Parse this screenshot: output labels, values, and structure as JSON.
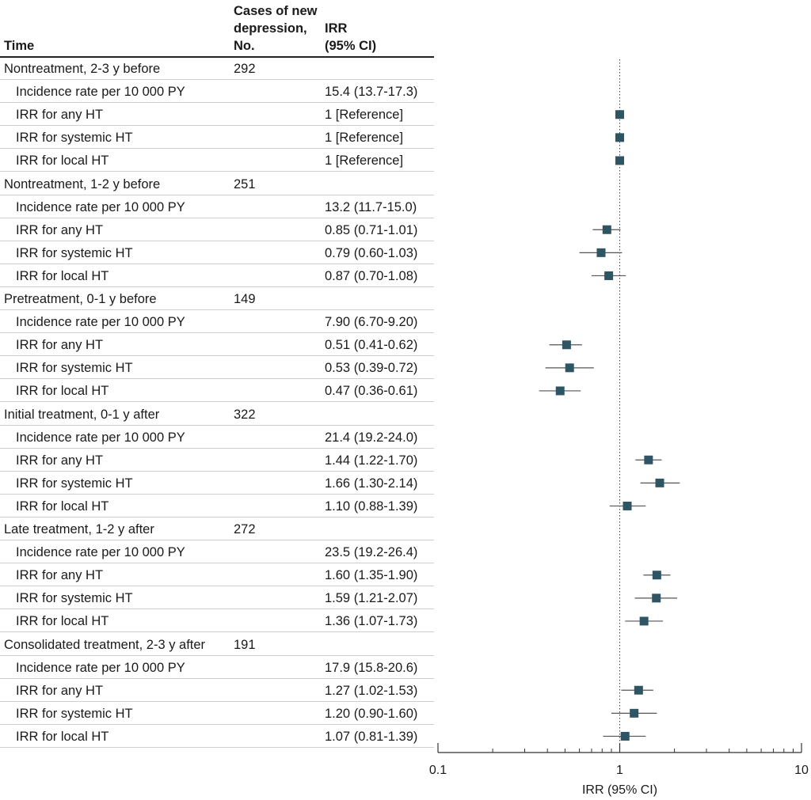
{
  "headers": {
    "time": "Time",
    "cases_line1": "Cases of new",
    "cases_line2": "depression,",
    "cases_line3": "No.",
    "irr_line1": "IRR",
    "irr_line2": "(95% CI)"
  },
  "colors": {
    "marker": "#2e5563",
    "ci_line": "#555555",
    "reference_line": "#444444",
    "separator": "#cfcfcf",
    "header_rule": "#222222"
  },
  "rows": [
    {
      "label": "Nontreatment, 2-3 y before",
      "cases": "292",
      "est": "",
      "group": true
    },
    {
      "label": "Incidence rate per 10 000 PY",
      "cases": "",
      "est": "15.4 (13.7-17.3)",
      "group": false
    },
    {
      "label": "IRR for any HT",
      "cases": "",
      "est": "1 [Reference]",
      "group": false
    },
    {
      "label": "IRR for systemic HT",
      "cases": "",
      "est": "1 [Reference]",
      "group": false
    },
    {
      "label": "IRR for local HT",
      "cases": "",
      "est": "1 [Reference]",
      "group": false
    },
    {
      "label": "Nontreatment, 1-2 y before",
      "cases": "251",
      "est": "",
      "group": true
    },
    {
      "label": "Incidence rate per 10 000 PY",
      "cases": "",
      "est": "13.2 (11.7-15.0)",
      "group": false
    },
    {
      "label": "IRR for any HT",
      "cases": "",
      "est": "0.85 (0.71-1.01)",
      "group": false
    },
    {
      "label": "IRR for systemic HT",
      "cases": "",
      "est": "0.79 (0.60-1.03)",
      "group": false
    },
    {
      "label": "IRR for local HT",
      "cases": "",
      "est": "0.87 (0.70-1.08)",
      "group": false
    },
    {
      "label": "Pretreatment, 0-1 y before",
      "cases": "149",
      "est": "",
      "group": true
    },
    {
      "label": "Incidence rate per 10 000 PY",
      "cases": "",
      "est": "7.90 (6.70-9.20)",
      "group": false
    },
    {
      "label": "IRR for any HT",
      "cases": "",
      "est": "0.51 (0.41-0.62)",
      "group": false
    },
    {
      "label": "IRR for systemic HT",
      "cases": "",
      "est": "0.53 (0.39-0.72)",
      "group": false
    },
    {
      "label": "IRR for local HT",
      "cases": "",
      "est": "0.47 (0.36-0.61)",
      "group": false
    },
    {
      "label": "Initial treatment, 0-1 y after",
      "cases": "322",
      "est": "",
      "group": true
    },
    {
      "label": "Incidence rate per 10 000 PY",
      "cases": "",
      "est": "21.4 (19.2-24.0)",
      "group": false
    },
    {
      "label": "IRR for any HT",
      "cases": "",
      "est": "1.44 (1.22-1.70)",
      "group": false
    },
    {
      "label": "IRR for systemic HT",
      "cases": "",
      "est": "1.66 (1.30-2.14)",
      "group": false
    },
    {
      "label": "IRR for local HT",
      "cases": "",
      "est": "1.10 (0.88-1.39)",
      "group": false
    },
    {
      "label": "Late treatment, 1-2 y after",
      "cases": "272",
      "est": "",
      "group": true
    },
    {
      "label": "Incidence rate per 10 000 PY",
      "cases": "",
      "est": "23.5 (19.2-26.4)",
      "group": false
    },
    {
      "label": "IRR for any HT",
      "cases": "",
      "est": "1.60 (1.35-1.90)",
      "group": false
    },
    {
      "label": "IRR for systemic HT",
      "cases": "",
      "est": "1.59 (1.21-2.07)",
      "group": false
    },
    {
      "label": "IRR for local HT",
      "cases": "",
      "est": "1.36 (1.07-1.73)",
      "group": false
    },
    {
      "label": "Consolidated treatment, 2-3 y after",
      "cases": "191",
      "est": "",
      "group": true
    },
    {
      "label": "Incidence rate per 10 000 PY",
      "cases": "",
      "est": "17.9 (15.8-20.6)",
      "group": false
    },
    {
      "label": "IRR for any HT",
      "cases": "",
      "est": "1.27 (1.02-1.53)",
      "group": false
    },
    {
      "label": "IRR for systemic HT",
      "cases": "",
      "est": "1.20 (0.90-1.60)",
      "group": false
    },
    {
      "label": "IRR for local HT",
      "cases": "",
      "est": "1.07 (0.81-1.39)",
      "group": false
    }
  ],
  "chart_data": {
    "type": "scatter",
    "subtype": "forest-plot",
    "xscale": "log",
    "xlim": [
      0.1,
      10
    ],
    "xticks": [
      0.1,
      1,
      10
    ],
    "xtick_labels": [
      "0.1",
      "1",
      "10"
    ],
    "xlabel": "IRR (95% CI)",
    "reference_line": 1,
    "grid": false,
    "points": [
      {
        "row": 2,
        "est": 1,
        "lo": null,
        "hi": null
      },
      {
        "row": 3,
        "est": 1,
        "lo": null,
        "hi": null
      },
      {
        "row": 4,
        "est": 1,
        "lo": null,
        "hi": null
      },
      {
        "row": 7,
        "est": 0.85,
        "lo": 0.71,
        "hi": 1.01
      },
      {
        "row": 8,
        "est": 0.79,
        "lo": 0.6,
        "hi": 1.03
      },
      {
        "row": 9,
        "est": 0.87,
        "lo": 0.7,
        "hi": 1.08
      },
      {
        "row": 12,
        "est": 0.51,
        "lo": 0.41,
        "hi": 0.62
      },
      {
        "row": 13,
        "est": 0.53,
        "lo": 0.39,
        "hi": 0.72
      },
      {
        "row": 14,
        "est": 0.47,
        "lo": 0.36,
        "hi": 0.61
      },
      {
        "row": 17,
        "est": 1.44,
        "lo": 1.22,
        "hi": 1.7
      },
      {
        "row": 18,
        "est": 1.66,
        "lo": 1.3,
        "hi": 2.14
      },
      {
        "row": 19,
        "est": 1.1,
        "lo": 0.88,
        "hi": 1.39
      },
      {
        "row": 22,
        "est": 1.6,
        "lo": 1.35,
        "hi": 1.9
      },
      {
        "row": 23,
        "est": 1.59,
        "lo": 1.21,
        "hi": 2.07
      },
      {
        "row": 24,
        "est": 1.36,
        "lo": 1.07,
        "hi": 1.73
      },
      {
        "row": 27,
        "est": 1.27,
        "lo": 1.02,
        "hi": 1.53
      },
      {
        "row": 28,
        "est": 1.2,
        "lo": 0.9,
        "hi": 1.6
      },
      {
        "row": 29,
        "est": 1.07,
        "lo": 0.81,
        "hi": 1.39
      }
    ]
  }
}
